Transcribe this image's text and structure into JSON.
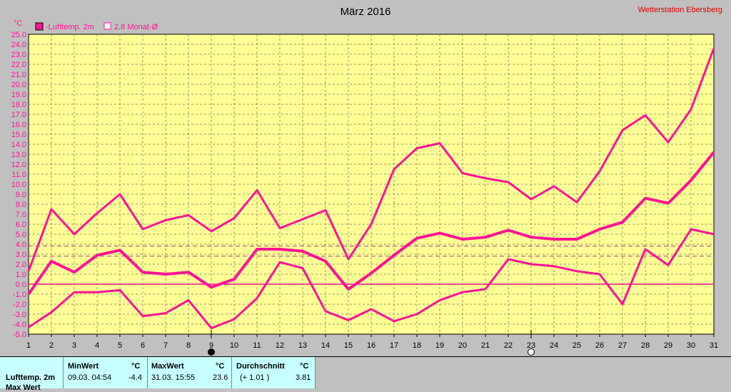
{
  "chart_data": {
    "type": "line",
    "title": "März 2016",
    "station": "Wetterstation Ebersberg",
    "y_unit": "°C",
    "ylim": [
      -5,
      25
    ],
    "y_ticks": [
      "25.0",
      "24.0",
      "23.0",
      "22.0",
      "21.0",
      "20.0",
      "19.0",
      "18.0",
      "17.0",
      "16.0",
      "15.0",
      "14.0",
      "13.0",
      "12.0",
      "11.0",
      "10.0",
      "9.0",
      "8.0",
      "7.0",
      "6.0",
      "5.0",
      "4.0",
      "3.0",
      "2.0",
      "1.0",
      "0.0",
      "-1.0",
      "-2.0",
      "-3.0",
      "-4.0",
      "-5.0"
    ],
    "x": [
      1,
      2,
      3,
      4,
      5,
      6,
      7,
      8,
      9,
      10,
      11,
      12,
      13,
      14,
      15,
      16,
      17,
      18,
      19,
      20,
      21,
      22,
      23,
      24,
      25,
      26,
      27,
      28,
      29,
      30,
      31
    ],
    "x_tick_labels": [
      "1",
      "2",
      "3",
      "4",
      "5",
      "6",
      "7",
      "8",
      "9",
      "10",
      "11",
      "12",
      "13",
      "14",
      "15",
      "16",
      "17",
      "18",
      "19",
      "20",
      "21",
      "22",
      "23",
      "24",
      "25",
      "26",
      "27",
      "28",
      "29",
      "30",
      "31"
    ],
    "grid": true,
    "legend_position": "top-left",
    "legend": [
      "-Lufttemp. 2m",
      "2.8 Monat-Ø"
    ],
    "series": [
      {
        "role": "max",
        "values": [
          1.3,
          7.5,
          5.0,
          7.1,
          9.0,
          5.5,
          6.4,
          6.9,
          5.3,
          6.6,
          9.4,
          5.6,
          6.5,
          7.4,
          2.5,
          6.0,
          11.5,
          13.6,
          14.1,
          11.1,
          10.6,
          10.2,
          8.5,
          9.8,
          8.2,
          11.3,
          15.4,
          16.9,
          14.2,
          17.5,
          23.6
        ]
      },
      {
        "role": "mean",
        "values": [
          -1.0,
          2.3,
          1.2,
          2.9,
          3.4,
          1.2,
          1.0,
          1.2,
          -0.3,
          0.5,
          3.5,
          3.5,
          3.3,
          2.3,
          -0.5,
          1.1,
          2.9,
          4.6,
          5.1,
          4.5,
          4.7,
          5.4,
          4.7,
          4.5,
          4.5,
          5.5,
          6.2,
          8.6,
          8.1,
          10.4,
          13.2
        ]
      },
      {
        "role": "min",
        "values": [
          -4.3,
          -2.8,
          -0.8,
          -0.8,
          -0.6,
          -3.2,
          -2.9,
          -1.6,
          -4.4,
          -3.5,
          -1.4,
          2.2,
          1.6,
          -2.7,
          -3.6,
          -2.5,
          -3.7,
          -3.0,
          -1.6,
          -0.8,
          -0.5,
          2.5,
          2.0,
          1.8,
          1.3,
          1.0,
          -2.0,
          3.5,
          1.9,
          5.5,
          5.0
        ]
      }
    ],
    "reference_lines": [
      {
        "name": "monthly-average",
        "value": 3.81
      },
      {
        "name": "long-term-average",
        "value": 2.8
      }
    ],
    "moon_markers": [
      {
        "day": 9,
        "phase": "new-moon"
      },
      {
        "day": 23,
        "phase": "full-moon"
      }
    ],
    "colors": {
      "line": "#ff1493",
      "plot_bg": "#ffff96",
      "dash": "#a04080",
      "axis_text": "#ff1493"
    }
  },
  "stats": {
    "row_label": "Lufttemp. 2m",
    "row_label_cut": "Max Wert",
    "min_header": "MinWert",
    "max_header": "MaxWert",
    "avg_header": "Durchschnitt",
    "unit": "°C",
    "min_time": "09.03.  04:54",
    "min_value": "-4.4",
    "max_time": "31.03.  15:55",
    "max_value": "23.6",
    "avg_diff": "(+ 1.01 )",
    "avg_value": "3.81"
  }
}
